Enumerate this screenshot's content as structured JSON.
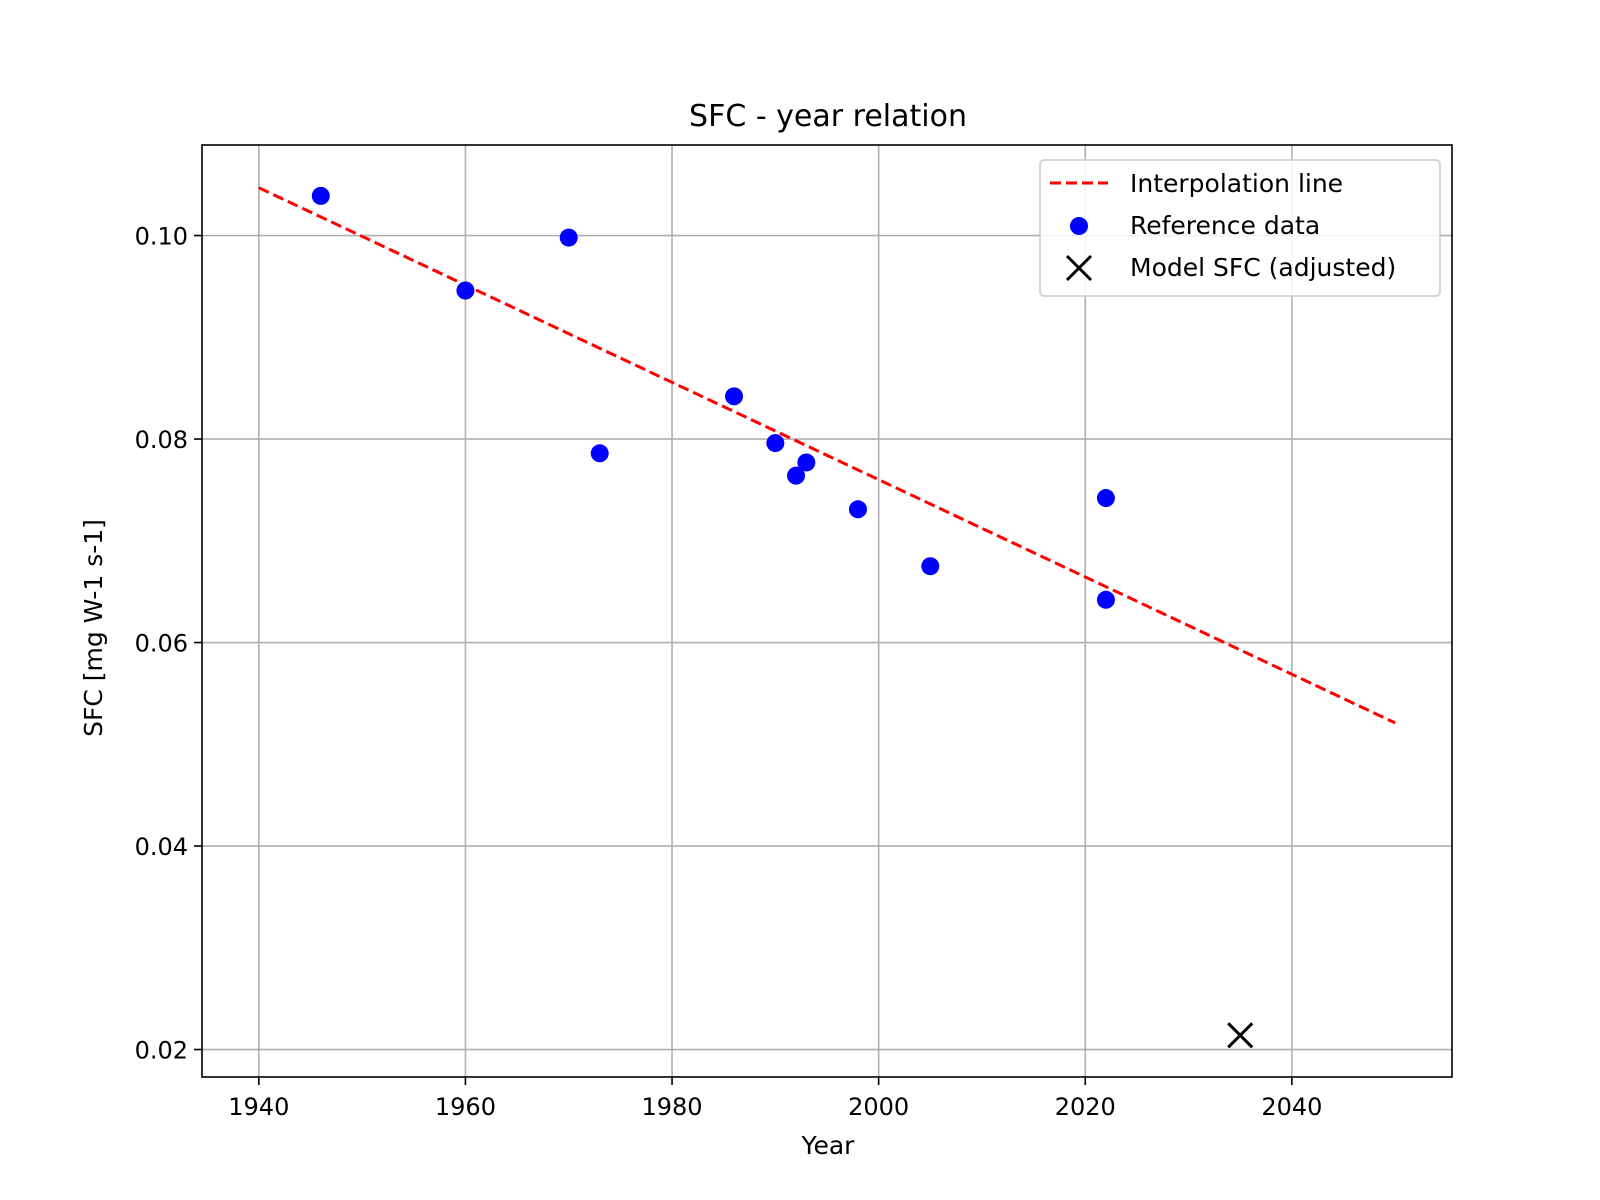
{
  "chart_data": {
    "type": "scatter",
    "title": "SFC - year relation",
    "xlabel": "Year",
    "ylabel": "SFC [mg W-1 s-1]",
    "xlim": [
      1934.5,
      2055.5
    ],
    "ylim": [
      0.0173,
      0.1089
    ],
    "xticks": [
      1940,
      1960,
      1980,
      2000,
      2020,
      2040
    ],
    "yticks": [
      0.02,
      0.04,
      0.06,
      0.08,
      0.1
    ],
    "ytick_labels": [
      "0.02",
      "0.04",
      "0.06",
      "0.08",
      "0.10"
    ],
    "grid": true,
    "legend": "top-right",
    "series": [
      {
        "name": "Interpolation line",
        "kind": "line",
        "style": "dashed",
        "color": "#ff0000",
        "x": [
          1940,
          2050
        ],
        "y": [
          0.1047,
          0.0521
        ]
      },
      {
        "name": "Reference data",
        "kind": "scatter",
        "marker": "circle",
        "color": "#0000ff",
        "x": [
          1946,
          1960,
          1970,
          1973,
          1986,
          1990,
          1992,
          1993,
          1998,
          2005,
          2022,
          2022
        ],
        "y": [
          0.1039,
          0.0946,
          0.0998,
          0.0786,
          0.0842,
          0.0796,
          0.0764,
          0.0777,
          0.0731,
          0.0675,
          0.0742,
          0.0642
        ]
      },
      {
        "name": "Model SFC (adjusted)",
        "kind": "scatter",
        "marker": "x",
        "color": "#000000",
        "x": [
          2035
        ],
        "y": [
          0.0214
        ]
      }
    ]
  }
}
